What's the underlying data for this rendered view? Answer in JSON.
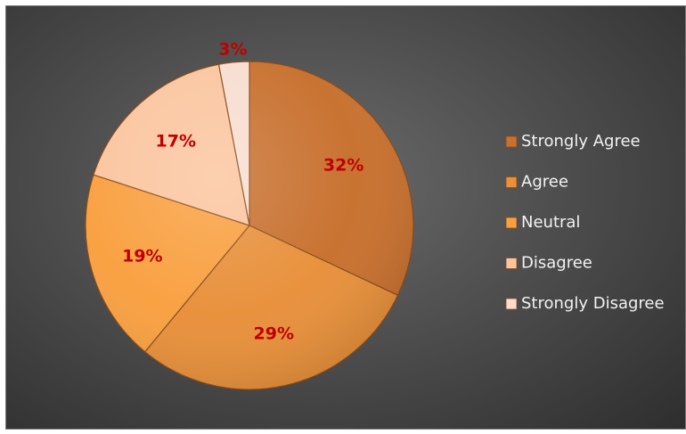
{
  "chart_data": {
    "type": "pie",
    "categories": [
      "Strongly Agree",
      "Agree",
      "Neutral",
      "Disagree",
      "Strongly Disagree"
    ],
    "values": [
      32,
      29,
      19,
      17,
      3
    ],
    "value_labels": [
      "32%",
      "29%",
      "19%",
      "17%",
      "3%"
    ],
    "colors": [
      "#c8702e",
      "#e8903a",
      "#f9a040",
      "#fbc59f",
      "#f8ddd0"
    ],
    "legend_position": "right",
    "start_angle_deg": 0,
    "direction": "clockwise"
  }
}
